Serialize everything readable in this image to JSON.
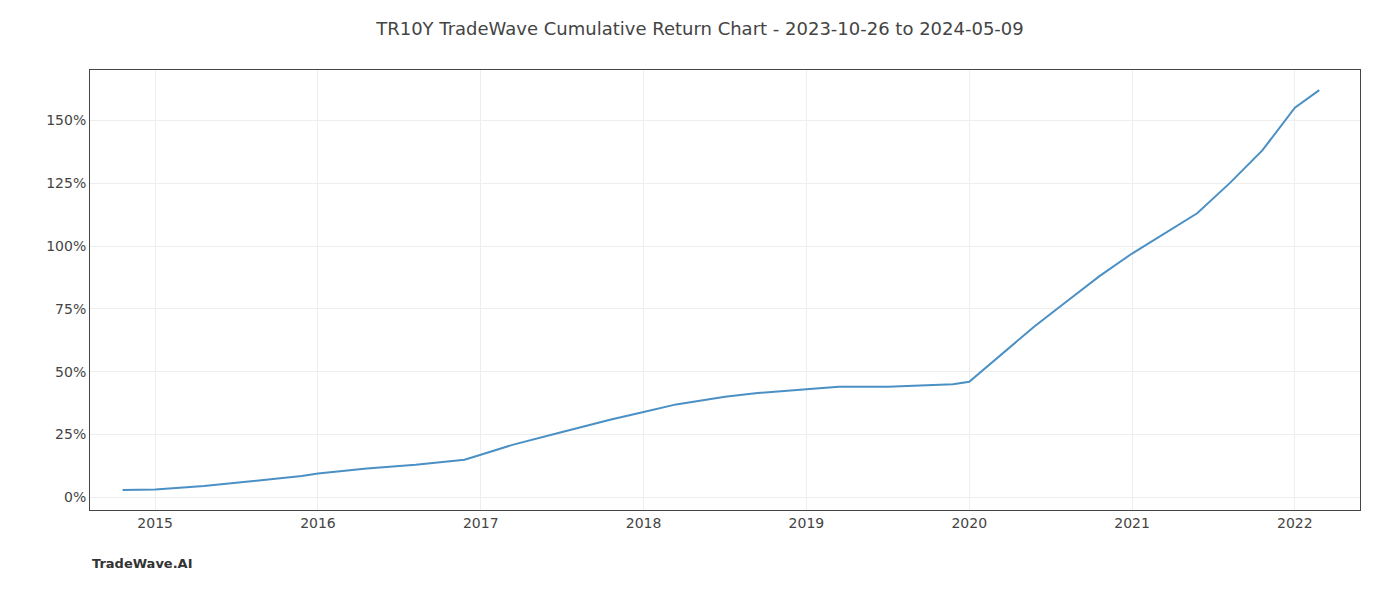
{
  "chart_data": {
    "type": "line",
    "title": "TR10Y TradeWave Cumulative Return Chart - 2023-10-26 to 2024-05-09",
    "annotations": [
      "TradeWave.AI"
    ],
    "x": [
      2014.8,
      2015.0,
      2015.3,
      2015.6,
      2015.9,
      2016.0,
      2016.3,
      2016.6,
      2016.9,
      2017.0,
      2017.2,
      2017.5,
      2017.8,
      2018.0,
      2018.2,
      2018.5,
      2018.7,
      2019.0,
      2019.2,
      2019.5,
      2019.7,
      2019.9,
      2020.0,
      2020.2,
      2020.4,
      2020.6,
      2020.8,
      2021.0,
      2021.1,
      2021.2,
      2021.4,
      2021.6,
      2021.8,
      2022.0,
      2022.15
    ],
    "values": [
      3.0,
      3.2,
      4.5,
      6.5,
      8.5,
      9.5,
      11.5,
      13.0,
      15.0,
      17.0,
      21.0,
      26.0,
      31.0,
      34.0,
      37.0,
      40.0,
      41.5,
      43.0,
      44.0,
      44.0,
      44.5,
      45.0,
      46.0,
      57.0,
      68.0,
      78.0,
      88.0,
      97.0,
      101.0,
      105.0,
      113.0,
      125.0,
      138.0,
      155.0,
      162.0
    ],
    "color": "#4a90c4",
    "xlim": [
      2014.6,
      2022.4
    ],
    "xticks": [
      2015,
      2016,
      2017,
      2018,
      2019,
      2020,
      2021,
      2022
    ],
    "ylim": [
      -5,
      170
    ],
    "yticks": [
      {
        "value": 0,
        "label": "0%"
      },
      {
        "value": 25,
        "label": "25%"
      },
      {
        "value": 50,
        "label": "50%"
      },
      {
        "value": 75,
        "label": "75%"
      },
      {
        "value": 100,
        "label": "100%"
      },
      {
        "value": 125,
        "label": "125%"
      },
      {
        "value": 150,
        "label": "150%"
      }
    ],
    "grid": true
  }
}
